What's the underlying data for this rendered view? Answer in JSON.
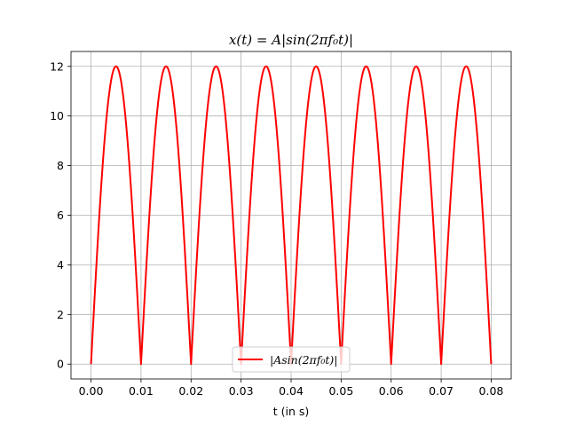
{
  "chart_data": {
    "type": "line",
    "title": "x(t) = A|sin(2πf₀t)|",
    "xlabel": "t (in s)",
    "ylabel": "",
    "xlim": [
      -0.004,
      0.084
    ],
    "ylim": [
      -0.6,
      12.6
    ],
    "xticks": [
      0.0,
      0.01,
      0.02,
      0.03,
      0.04,
      0.05,
      0.06,
      0.07,
      0.08
    ],
    "xtick_labels": [
      "0.00",
      "0.01",
      "0.02",
      "0.03",
      "0.04",
      "0.05",
      "0.06",
      "0.07",
      "0.08"
    ],
    "yticks": [
      0,
      2,
      4,
      6,
      8,
      10,
      12
    ],
    "ytick_labels": [
      "0",
      "2",
      "4",
      "6",
      "8",
      "10",
      "12"
    ],
    "grid": true,
    "legend_position": "lower-center",
    "series": [
      {
        "name": "|Asin(2πf₀t)|",
        "color": "#ff0000",
        "amplitude": 12,
        "frequency_hz": 50,
        "t_start": 0.0,
        "t_end": 0.08,
        "x": [
          0.0,
          0.005,
          0.01,
          0.015,
          0.02,
          0.025,
          0.03,
          0.035,
          0.04,
          0.045,
          0.05,
          0.055,
          0.06,
          0.065,
          0.07,
          0.075,
          0.08
        ],
        "values": [
          0,
          12,
          0,
          12,
          0,
          12,
          0,
          12,
          0,
          12,
          0,
          12,
          0,
          12,
          0,
          12,
          0
        ]
      }
    ]
  }
}
